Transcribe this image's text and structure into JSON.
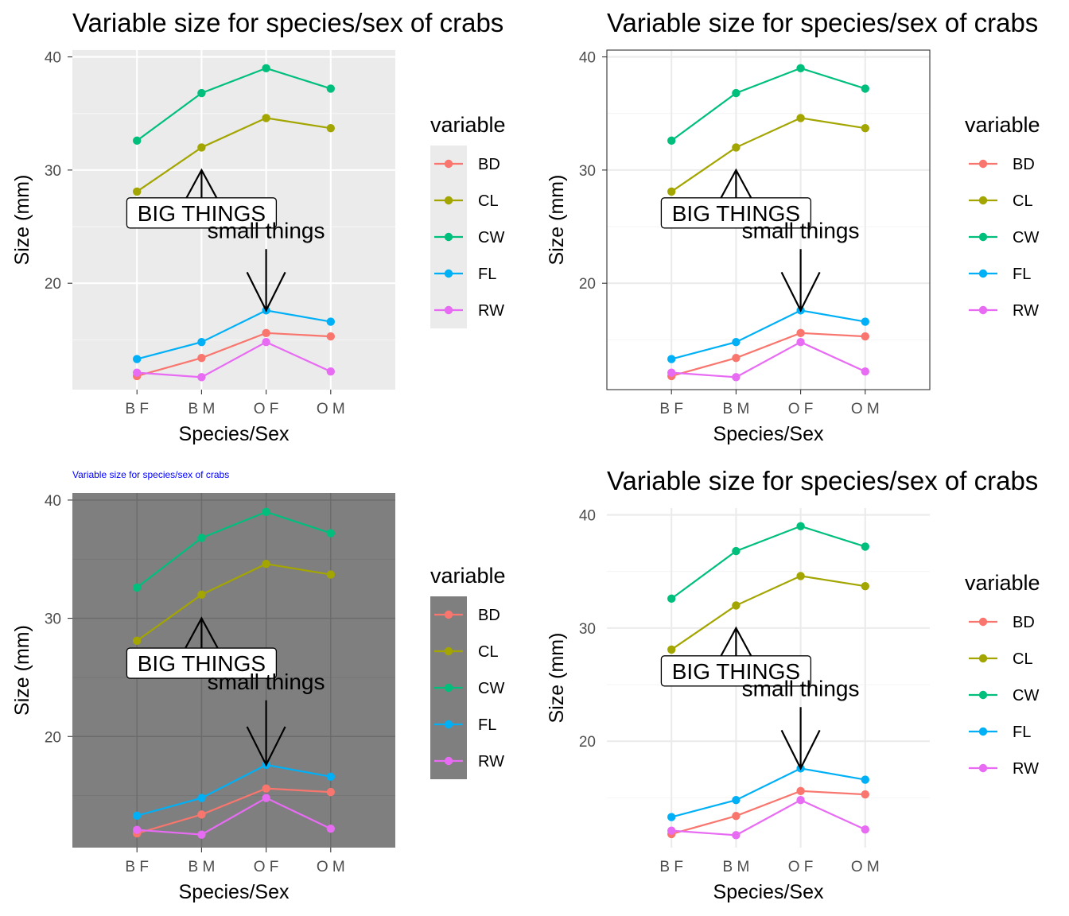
{
  "chart_data": [
    {
      "type": "line",
      "theme": "grey",
      "title": "Variable size for species/sex of crabs",
      "xlabel": "Species/Sex",
      "ylabel": "Size (mm)",
      "categories": [
        "B F",
        "B M",
        "O F",
        "O M"
      ],
      "yticks": [
        20,
        30,
        40
      ],
      "ylim": [
        10.6,
        40.6
      ],
      "grid": true,
      "legend": {
        "title": "variable",
        "placement": "right"
      },
      "series": [
        {
          "name": "BD",
          "color": "#F8766D",
          "values": [
            11.8,
            13.4,
            15.6,
            15.3
          ]
        },
        {
          "name": "CL",
          "color": "#A3A500",
          "values": [
            28.1,
            32.0,
            34.6,
            33.7
          ]
        },
        {
          "name": "CW",
          "color": "#00BF7D",
          "values": [
            32.6,
            36.8,
            39.0,
            37.2
          ]
        },
        {
          "name": "FL",
          "color": "#00B0F6",
          "values": [
            13.3,
            14.8,
            17.6,
            16.6
          ]
        },
        {
          "name": "RW",
          "color": "#E76BF3",
          "values": [
            12.1,
            11.7,
            14.8,
            12.2
          ]
        }
      ],
      "annotations": [
        {
          "text": "BIG THINGS",
          "kind": "label",
          "x": "B M",
          "y": 26.0,
          "arrow_to": 30.0
        },
        {
          "text": "small things",
          "kind": "text",
          "x": "O F",
          "y": 24.0,
          "arrow_to": 17.6
        }
      ]
    },
    {
      "type": "line",
      "theme": "bw",
      "title": "Variable size for species/sex of crabs",
      "xlabel": "Species/Sex",
      "ylabel": "Size (mm)",
      "categories": [
        "B F",
        "B M",
        "O F",
        "O M"
      ],
      "yticks": [
        20,
        30,
        40
      ],
      "ylim": [
        10.6,
        40.6
      ],
      "grid": true,
      "legend": {
        "title": "variable",
        "placement": "right"
      },
      "series": [
        {
          "name": "BD",
          "color": "#F8766D",
          "values": [
            11.8,
            13.4,
            15.6,
            15.3
          ]
        },
        {
          "name": "CL",
          "color": "#A3A500",
          "values": [
            28.1,
            32.0,
            34.6,
            33.7
          ]
        },
        {
          "name": "CW",
          "color": "#00BF7D",
          "values": [
            32.6,
            36.8,
            39.0,
            37.2
          ]
        },
        {
          "name": "FL",
          "color": "#00B0F6",
          "values": [
            13.3,
            14.8,
            17.6,
            16.6
          ]
        },
        {
          "name": "RW",
          "color": "#E76BF3",
          "values": [
            12.1,
            11.7,
            14.8,
            12.2
          ]
        }
      ],
      "annotations": [
        {
          "text": "BIG THINGS",
          "kind": "label",
          "x": "B M",
          "y": 26.0,
          "arrow_to": 30.0
        },
        {
          "text": "small things",
          "kind": "text",
          "x": "O F",
          "y": 24.0,
          "arrow_to": 17.6
        }
      ]
    },
    {
      "type": "line",
      "theme": "dark",
      "title": "Variable size for species/sex of crabs",
      "title_color": "#0000FF",
      "xlabel": "Species/Sex",
      "ylabel": "Size (mm)",
      "categories": [
        "B F",
        "B M",
        "O F",
        "O M"
      ],
      "yticks": [
        20,
        30,
        40
      ],
      "ylim": [
        10.6,
        40.6
      ],
      "grid": true,
      "legend": {
        "title": "variable",
        "placement": "right"
      },
      "series": [
        {
          "name": "BD",
          "color": "#F8766D",
          "values": [
            11.8,
            13.4,
            15.6,
            15.3
          ]
        },
        {
          "name": "CL",
          "color": "#A3A500",
          "values": [
            28.1,
            32.0,
            34.6,
            33.7
          ]
        },
        {
          "name": "CW",
          "color": "#00BF7D",
          "values": [
            32.6,
            36.8,
            39.0,
            37.2
          ]
        },
        {
          "name": "FL",
          "color": "#00B0F6",
          "values": [
            13.3,
            14.8,
            17.6,
            16.6
          ]
        },
        {
          "name": "RW",
          "color": "#E76BF3",
          "values": [
            12.1,
            11.7,
            14.8,
            12.2
          ]
        }
      ],
      "annotations": [
        {
          "text": "BIG THINGS",
          "kind": "label",
          "x": "B M",
          "y": 26.0,
          "arrow_to": 30.0
        },
        {
          "text": "small things",
          "kind": "text",
          "x": "O F",
          "y": 24.0,
          "arrow_to": 17.6
        }
      ]
    },
    {
      "type": "line",
      "theme": "minimal",
      "title": "Variable size for species/sex of crabs",
      "xlabel": "Species/Sex",
      "ylabel": "Size (mm)",
      "categories": [
        "B F",
        "B M",
        "O F",
        "O M"
      ],
      "yticks": [
        20,
        30,
        40
      ],
      "ylim": [
        10.6,
        40.6
      ],
      "grid": true,
      "legend": {
        "title": "variable",
        "placement": "right"
      },
      "series": [
        {
          "name": "BD",
          "color": "#F8766D",
          "values": [
            11.8,
            13.4,
            15.6,
            15.3
          ]
        },
        {
          "name": "CL",
          "color": "#A3A500",
          "values": [
            28.1,
            32.0,
            34.6,
            33.7
          ]
        },
        {
          "name": "CW",
          "color": "#00BF7D",
          "values": [
            32.6,
            36.8,
            39.0,
            37.2
          ]
        },
        {
          "name": "FL",
          "color": "#00B0F6",
          "values": [
            13.3,
            14.8,
            17.6,
            16.6
          ]
        },
        {
          "name": "RW",
          "color": "#E76BF3",
          "values": [
            12.1,
            11.7,
            14.8,
            12.2
          ]
        }
      ],
      "annotations": [
        {
          "text": "BIG THINGS",
          "kind": "label",
          "x": "B M",
          "y": 26.0,
          "arrow_to": 30.0
        },
        {
          "text": "small things",
          "kind": "text",
          "x": "O F",
          "y": 24.0,
          "arrow_to": 17.6
        }
      ]
    }
  ]
}
